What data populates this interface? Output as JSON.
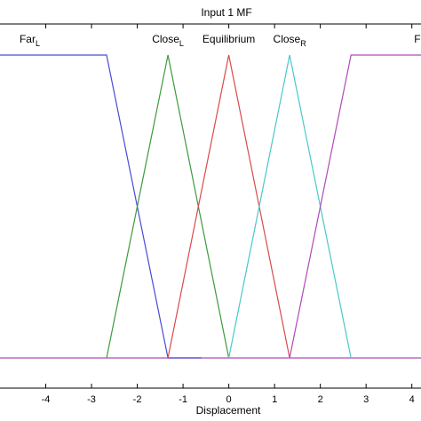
{
  "chart_data": {
    "type": "line",
    "title": "Input 1 MF",
    "xlabel": "Displacement",
    "ylabel": "",
    "xlim": [
      -5,
      4.2
    ],
    "ylim": [
      0,
      1
    ],
    "x_ticks": [
      -4,
      -3,
      -2,
      -1,
      0,
      1,
      2,
      3,
      4
    ],
    "x_tick_labels": [
      "-4",
      "-3",
      "-2",
      "-1",
      "0",
      "1",
      "2",
      "3",
      "4"
    ],
    "grid": false,
    "series": [
      {
        "name": "Far_L",
        "label_main": "Far",
        "label_sub": "L",
        "color": "#4a4ad8",
        "x": [
          -5,
          -2.67,
          -1.33,
          -0.6
        ],
        "y": [
          1,
          1,
          0,
          0
        ]
      },
      {
        "name": "Close_L",
        "label_main": "Close",
        "label_sub": "L",
        "color": "#3d9a3d",
        "x": [
          -2.67,
          -1.33,
          0
        ],
        "y": [
          0,
          1,
          0
        ]
      },
      {
        "name": "Equilibrium",
        "label_main": "Equilibrium",
        "label_sub": "",
        "color": "#d94a4a",
        "x": [
          -1.33,
          0,
          1.33
        ],
        "y": [
          0,
          1,
          0
        ]
      },
      {
        "name": "Close_R",
        "label_main": "Close",
        "label_sub": "R",
        "color": "#4ac8c8",
        "x": [
          0,
          1.33,
          2.67
        ],
        "y": [
          0,
          1,
          0
        ]
      },
      {
        "name": "Far_R",
        "label_main": "Fa",
        "label_sub": "",
        "color": "#b04ab8",
        "x": [
          1.33,
          2.67,
          4.2
        ],
        "y": [
          0,
          1,
          1
        ]
      }
    ],
    "baseline_y": 0
  }
}
